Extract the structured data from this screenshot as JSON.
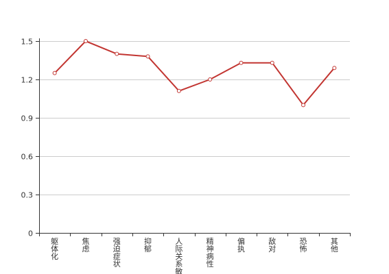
{
  "chart_data": {
    "type": "line",
    "categories": [
      "躯体化",
      "焦虑",
      "强迫症状",
      "抑郁",
      "人际关系敏感",
      "精神病性",
      "偏执",
      "敌对",
      "恐怖",
      "其他"
    ],
    "series": [
      {
        "values": [
          1.25,
          1.5,
          1.4,
          1.38,
          1.11,
          1.2,
          1.33,
          1.33,
          1.0,
          1.29
        ]
      }
    ],
    "ylim": [
      0,
      1.5
    ],
    "yticks": [
      0,
      0.3,
      0.6,
      0.9,
      1.2,
      1.5
    ],
    "ytick_labels": [
      "0",
      "0.3",
      "0.6",
      "0.9",
      "1.2",
      "1.5"
    ],
    "grid": true,
    "colors": {
      "line": "#c23531",
      "grid": "#cccccc",
      "axis": "#333333",
      "point_fill": "#ffffff"
    }
  }
}
